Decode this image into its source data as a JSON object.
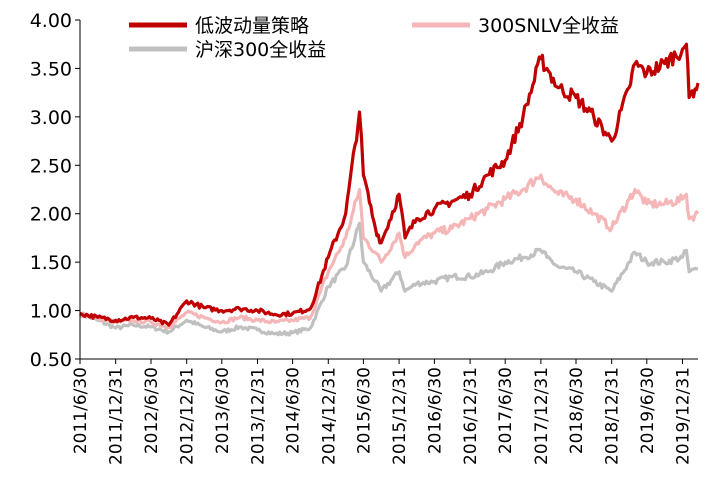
{
  "chart_data": {
    "type": "line",
    "title": "",
    "xlabel": "",
    "ylabel": "",
    "ylim": [
      0.5,
      4.0
    ],
    "y_ticks": [
      "0.50",
      "1.00",
      "1.50",
      "2.00",
      "2.50",
      "3.00",
      "3.50",
      "4.00"
    ],
    "x_tick_labels": [
      "2011/6/30",
      "2011/12/31",
      "2012/6/30",
      "2012/12/31",
      "2013/6/30",
      "2013/12/31",
      "2014/6/30",
      "2014/12/31",
      "2015/6/30",
      "2015/12/31",
      "2016/6/30",
      "2016/12/31",
      "2017/6/30",
      "2017/12/31",
      "2018/6/30",
      "2018/12/31",
      "2019/6/30",
      "2019/12/31"
    ],
    "grid": false,
    "legend_placement": "top",
    "x": [
      "2011/6/30",
      "2011/9/30",
      "2011/12/31",
      "2012/3/31",
      "2012/6/30",
      "2012/9/30",
      "2012/12/31",
      "2013/3/31",
      "2013/6/30",
      "2013/9/30",
      "2013/12/31",
      "2014/3/31",
      "2014/6/30",
      "2014/9/30",
      "2014/12/31",
      "2015/3/31",
      "2015/6/10",
      "2015/6/30",
      "2015/8/31",
      "2015/9/30",
      "2015/12/31",
      "2016/1/31",
      "2016/3/31",
      "2016/6/30",
      "2016/9/30",
      "2016/12/31",
      "2017/3/31",
      "2017/6/30",
      "2017/9/30",
      "2017/12/31",
      "2018/1/31",
      "2018/3/31",
      "2018/6/30",
      "2018/9/30",
      "2018/12/31",
      "2019/3/31",
      "2019/4/30",
      "2019/6/30",
      "2019/9/30",
      "2019/12/31",
      "2020/1/20",
      "2020/2/3",
      "2020/3/20"
    ],
    "series": [
      {
        "name": "低波动量策略",
        "color": "#c00000",
        "values": [
          0.97,
          0.93,
          0.9,
          0.93,
          0.92,
          0.85,
          1.1,
          1.03,
          1.0,
          1.02,
          1.0,
          0.96,
          0.97,
          1.02,
          1.55,
          2.0,
          3.05,
          2.4,
          1.85,
          1.7,
          2.2,
          1.75,
          1.95,
          2.05,
          2.13,
          2.2,
          2.4,
          2.55,
          3.0,
          3.6,
          3.5,
          3.3,
          3.2,
          3.0,
          2.75,
          3.3,
          3.55,
          3.45,
          3.55,
          3.7,
          3.75,
          3.2,
          3.35
        ]
      },
      {
        "name": "300SNLV全收益",
        "color": "#f4b6b7",
        "values": [
          0.97,
          0.92,
          0.88,
          0.9,
          0.88,
          0.83,
          0.98,
          0.93,
          0.88,
          0.93,
          0.9,
          0.88,
          0.9,
          0.93,
          1.4,
          1.75,
          2.25,
          1.75,
          1.6,
          1.5,
          1.8,
          1.55,
          1.7,
          1.8,
          1.85,
          1.95,
          2.05,
          2.15,
          2.25,
          2.4,
          2.3,
          2.2,
          2.15,
          2.0,
          1.85,
          2.15,
          2.25,
          2.1,
          2.1,
          2.15,
          2.2,
          1.95,
          2.0
        ]
      },
      {
        "name": "沪深300全收益",
        "color": "#c0c0c0",
        "values": [
          0.97,
          0.9,
          0.82,
          0.85,
          0.83,
          0.78,
          0.9,
          0.83,
          0.78,
          0.83,
          0.8,
          0.76,
          0.77,
          0.82,
          1.25,
          1.45,
          1.9,
          1.5,
          1.3,
          1.2,
          1.4,
          1.2,
          1.28,
          1.3,
          1.35,
          1.35,
          1.4,
          1.5,
          1.55,
          1.62,
          1.55,
          1.45,
          1.4,
          1.3,
          1.2,
          1.5,
          1.6,
          1.5,
          1.5,
          1.55,
          1.62,
          1.4,
          1.43
        ]
      }
    ]
  }
}
